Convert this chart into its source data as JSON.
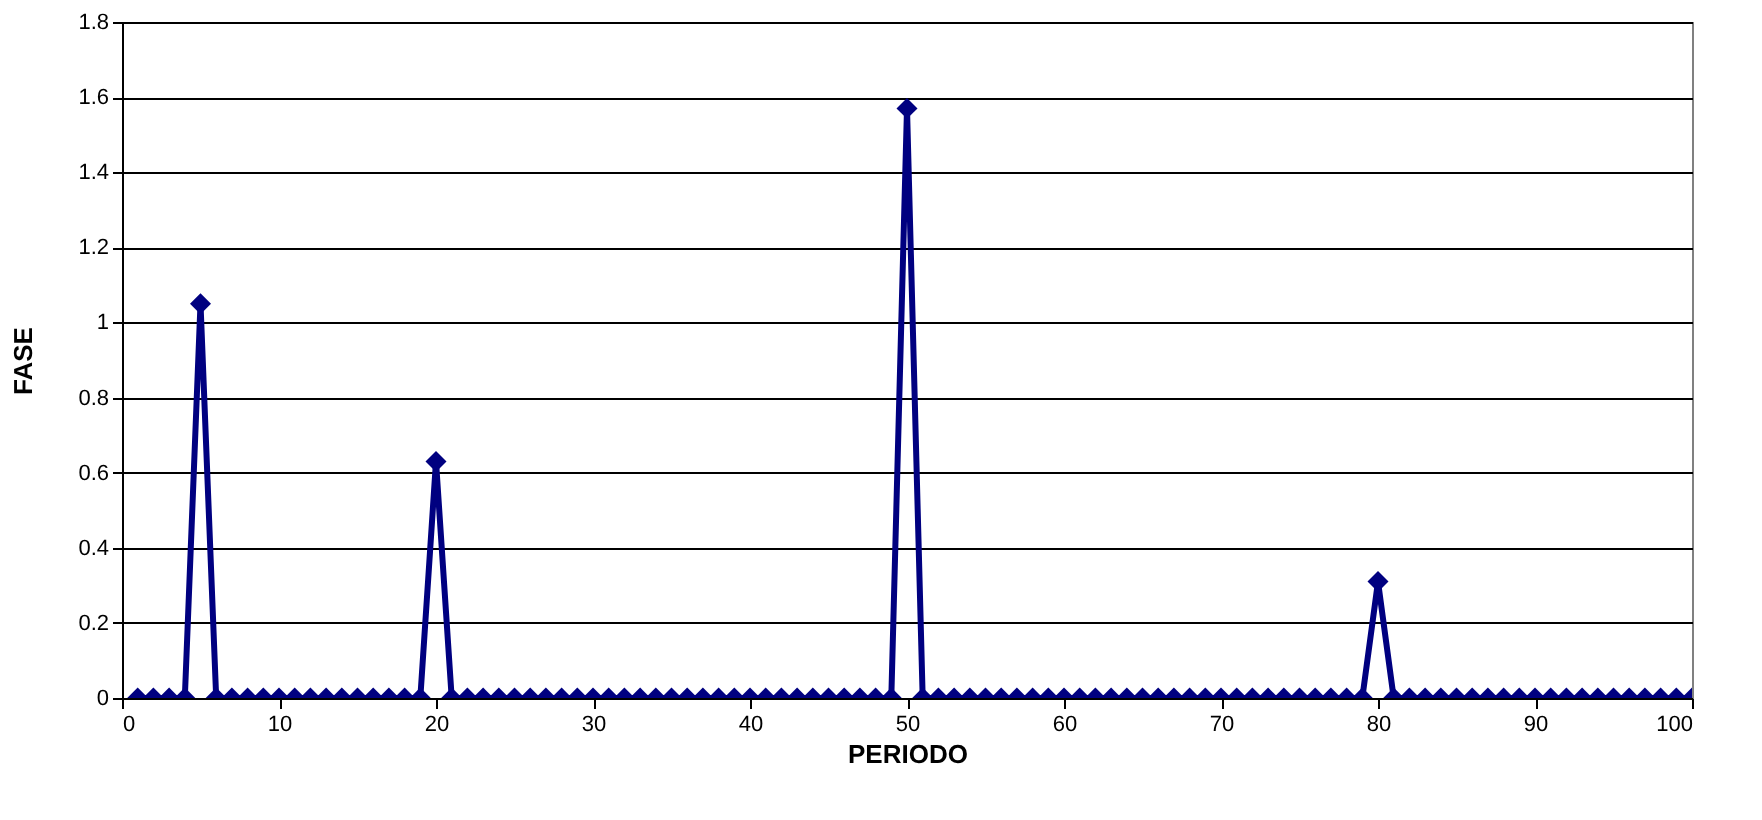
{
  "chart_data": {
    "type": "line",
    "xlabel": "PERIODO",
    "ylabel": "FASE",
    "x": [
      1,
      2,
      3,
      4,
      5,
      6,
      7,
      8,
      9,
      10,
      11,
      12,
      13,
      14,
      15,
      16,
      17,
      18,
      19,
      20,
      21,
      22,
      23,
      24,
      25,
      26,
      27,
      28,
      29,
      30,
      31,
      32,
      33,
      34,
      35,
      36,
      37,
      38,
      39,
      40,
      41,
      42,
      43,
      44,
      45,
      46,
      47,
      48,
      49,
      50,
      51,
      52,
      53,
      54,
      55,
      56,
      57,
      58,
      59,
      60,
      61,
      62,
      63,
      64,
      65,
      66,
      67,
      68,
      69,
      70,
      71,
      72,
      73,
      74,
      75,
      76,
      77,
      78,
      79,
      80,
      81,
      82,
      83,
      84,
      85,
      86,
      87,
      88,
      89,
      90,
      91,
      92,
      93,
      94,
      95,
      96,
      97,
      98,
      99,
      100
    ],
    "series": [
      {
        "color": "#000080",
        "values": [
          0,
          0,
          0,
          0,
          1.05,
          0,
          0,
          0,
          0,
          0,
          0,
          0,
          0,
          0,
          0,
          0,
          0,
          0,
          0,
          0.63,
          0,
          0,
          0,
          0,
          0,
          0,
          0,
          0,
          0,
          0,
          0,
          0,
          0,
          0,
          0,
          0,
          0,
          0,
          0,
          0,
          0,
          0,
          0,
          0,
          0,
          0,
          0,
          0,
          0,
          1.57,
          0,
          0,
          0,
          0,
          0,
          0,
          0,
          0,
          0,
          0,
          0,
          0,
          0,
          0,
          0,
          0,
          0,
          0,
          0,
          0,
          0,
          0,
          0,
          0,
          0,
          0,
          0,
          0,
          0,
          0.31,
          0,
          0,
          0,
          0,
          0,
          0,
          0,
          0,
          0,
          0,
          0,
          0,
          0,
          0,
          0,
          0,
          0,
          0,
          0,
          0
        ]
      }
    ],
    "xlim": [
      0,
      100
    ],
    "xticks": [
      0,
      10,
      20,
      30,
      40,
      50,
      60,
      70,
      80,
      90,
      100
    ],
    "ylim": [
      0,
      1.8
    ],
    "yticks": [
      0,
      0.2,
      0.4,
      0.6,
      0.8,
      1,
      1.2,
      1.4,
      1.6,
      1.8
    ],
    "grid": "y",
    "marker": "diamond",
    "line_style": "solid"
  }
}
